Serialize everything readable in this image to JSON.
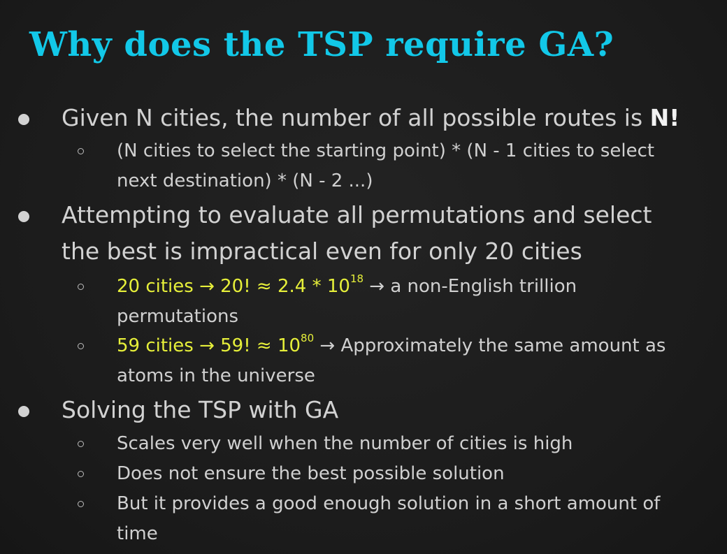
{
  "title": "Why does the TSP require GA?",
  "bullets": [
    {
      "text": "Given N cities, the number of all possible routes is ",
      "emphasis": "N!",
      "subitems": [
        {
          "line1": "(N cities to select the starting point) * (N - 1 cities to select",
          "line2": "next destination) * (N - 2 ...)"
        }
      ]
    },
    {
      "line1": "Attempting to evaluate all permutations and select",
      "line2": "the best is impractical even for only 20 cities",
      "subitems": [
        {
          "highlight": "20 cities → 20! ≈ 2.4 * 10",
          "exponent": "18",
          "rest": " → a non-English trillion",
          "line2": "permutations"
        },
        {
          "highlight": "59 cities → 59! ≈ 10",
          "exponent": "80",
          "rest": " → Approximately the same amount as",
          "line2": "atoms in the universe"
        }
      ]
    },
    {
      "text": "Solving the TSP with GA",
      "subitems": [
        {
          "text": "Scales very well when the number of cities is high"
        },
        {
          "text": "Does not ensure the best possible solution"
        },
        {
          "line1": "But it provides a good enough solution in a short amount of",
          "line2": "time"
        }
      ]
    }
  ]
}
